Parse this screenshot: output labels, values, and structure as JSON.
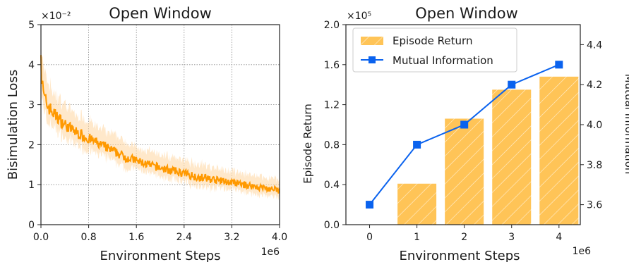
{
  "chart_data": [
    {
      "type": "line",
      "title": "Open Window",
      "xlabel": "Environment Steps",
      "ylabel": "Bisimulation Loss",
      "x_scale_label": "1e6",
      "y_scale_label": "×10⁻²",
      "xlim": [
        0,
        4.0
      ],
      "ylim": [
        0,
        5
      ],
      "xticks": [
        "0.0",
        "0.8",
        "1.6",
        "2.4",
        "3.2",
        "4.0"
      ],
      "yticks": [
        "0",
        "1",
        "2",
        "3",
        "4",
        "5"
      ],
      "grid": true,
      "series_color": "#ff9900",
      "band_color": "#ffd9a6",
      "series": [
        {
          "x": [
            0.0,
            0.1,
            0.2,
            0.3,
            0.4,
            0.6,
            0.8,
            1.0,
            1.2,
            1.4,
            1.6,
            1.8,
            2.0,
            2.2,
            2.4,
            2.6,
            2.8,
            3.0,
            3.2,
            3.4,
            3.6,
            3.8,
            4.0
          ],
          "values": [
            3.4,
            3.0,
            2.8,
            2.65,
            2.5,
            2.3,
            2.15,
            2.0,
            1.85,
            1.7,
            1.6,
            1.5,
            1.42,
            1.35,
            1.28,
            1.2,
            1.15,
            1.1,
            1.05,
            1.0,
            0.95,
            0.9,
            0.85
          ],
          "band": [
            0.6,
            0.55,
            0.5,
            0.45,
            0.45,
            0.4,
            0.4,
            0.35,
            0.35,
            0.35,
            0.3,
            0.3,
            0.3,
            0.3,
            0.3,
            0.3,
            0.3,
            0.25,
            0.25,
            0.25,
            0.25,
            0.25,
            0.25
          ]
        }
      ]
    },
    {
      "type": "bar",
      "title": "Open Window",
      "xlabel": "Environment Steps",
      "ylabel": "Episode Return",
      "y2label": "Mutual Information",
      "x_scale_label": "1e6",
      "y_scale_label": "×10⁵",
      "xlim": [
        -0.5,
        4.45
      ],
      "ylim": [
        0,
        2.0
      ],
      "y2lim": [
        3.5,
        4.5
      ],
      "xticks": [
        "0",
        "1",
        "2",
        "3",
        "4"
      ],
      "yticks": [
        "0.0",
        "0.4",
        "0.8",
        "1.2",
        "1.6",
        "2.0"
      ],
      "y2ticks": [
        "3.6",
        "3.8",
        "4.0",
        "4.2",
        "4.4"
      ],
      "grid": false,
      "legend": "top-left",
      "bar_color": "#ffc457",
      "line_color": "#0a62ee",
      "series": [
        {
          "name": "Episode Return",
          "x": [
            1,
            2,
            3,
            4
          ],
          "values": [
            0.41,
            1.06,
            1.35,
            1.48
          ]
        },
        {
          "name": "Mutual Information",
          "x": [
            0,
            1,
            2,
            3,
            4
          ],
          "values": [
            3.6,
            3.9,
            4.0,
            4.2,
            4.3
          ]
        }
      ]
    }
  ]
}
